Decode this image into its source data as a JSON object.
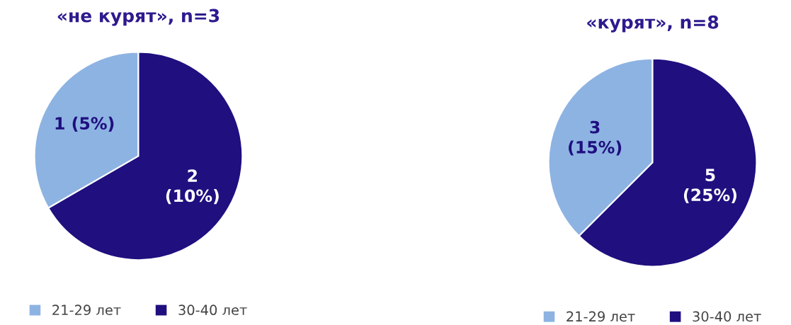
{
  "chart_data": [
    {
      "type": "pie",
      "title": "«не курят», n=3",
      "categories": [
        "21-29 лет",
        "30-40 лет"
      ],
      "values": [
        1,
        2
      ],
      "colors": [
        "#8db3e2",
        "#1f0f7f"
      ],
      "value_labels": [
        "1 (5%)",
        "2\n(10%)"
      ],
      "legend": "bottom"
    },
    {
      "type": "pie",
      "title": "«курят», n=8",
      "categories": [
        "21-29 лет",
        "30-40 лет"
      ],
      "values": [
        3,
        5
      ],
      "colors": [
        "#8db3e2",
        "#1f0f7f"
      ],
      "value_labels": [
        "3\n(15%)",
        "5\n(25%)"
      ],
      "legend": "bottom"
    }
  ]
}
